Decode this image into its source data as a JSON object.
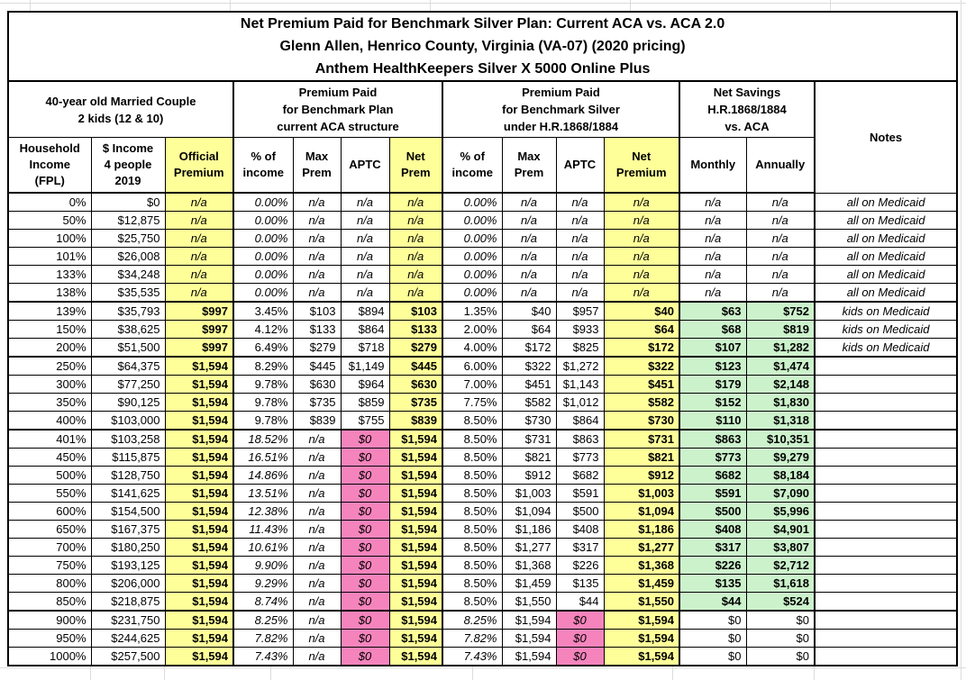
{
  "title": [
    "Net Premium Paid for Benchmark Silver Plan: Current ACA vs. ACA 2.0",
    "Glenn Allen, Henrico County, Virginia (VA-07) (2020 pricing)",
    "Anthem HealthKeepers Silver X 5000 Online Plus"
  ],
  "groups": {
    "household": "40-year old Married Couple\n2 kids (12 & 10)",
    "aca": "Premium Paid\nfor Benchmark Plan\ncurrent ACA structure",
    "hr": "Premium Paid\nfor Benchmark Silver\nunder H.R.1868/1884",
    "savings": "Net Savings\nH.R.1868/1884\nvs. ACA",
    "notes": "Notes"
  },
  "columns": [
    {
      "id": "fpl",
      "label": "Household\nIncome\n(FPL)"
    },
    {
      "id": "income",
      "label": "$ Income\n4 people\n2019"
    },
    {
      "id": "official-premium",
      "label": "Official\nPremium"
    },
    {
      "id": "aca-pct-income",
      "label": "% of\nincome"
    },
    {
      "id": "aca-max-prem",
      "label": "Max\nPrem"
    },
    {
      "id": "aca-aptc",
      "label": "APTC"
    },
    {
      "id": "aca-net-prem",
      "label": "Net\nPrem"
    },
    {
      "id": "hr-pct-income",
      "label": "% of\nincome"
    },
    {
      "id": "hr-max-prem",
      "label": "Max\nPrem"
    },
    {
      "id": "hr-aptc",
      "label": "APTC"
    },
    {
      "id": "hr-net-premium",
      "label": "Net\nPremium"
    },
    {
      "id": "savings-monthly",
      "label": "Monthly"
    },
    {
      "id": "savings-annually",
      "label": "Annually"
    },
    {
      "id": "notes",
      "label": "Notes"
    }
  ],
  "colors": {
    "yellow": "#FFFF99",
    "pink": "#F584BC",
    "green": "#CCF2CC",
    "border": "#000000",
    "grid": "#DCDCDC"
  },
  "rows": [
    {
      "group": "medicaid",
      "sep": false,
      "cells": [
        "0%",
        "$0",
        "n/a",
        "0.00%",
        "n/a",
        "n/a",
        "n/a",
        "0.00%",
        "n/a",
        "n/a",
        "n/a",
        "n/a",
        "n/a",
        "all on Medicaid"
      ]
    },
    {
      "group": "medicaid",
      "sep": false,
      "cells": [
        "50%",
        "$12,875",
        "n/a",
        "0.00%",
        "n/a",
        "n/a",
        "n/a",
        "0.00%",
        "n/a",
        "n/a",
        "n/a",
        "n/a",
        "n/a",
        "all on Medicaid"
      ]
    },
    {
      "group": "medicaid",
      "sep": false,
      "cells": [
        "100%",
        "$25,750",
        "n/a",
        "0.00%",
        "n/a",
        "n/a",
        "n/a",
        "0.00%",
        "n/a",
        "n/a",
        "n/a",
        "n/a",
        "n/a",
        "all on Medicaid"
      ]
    },
    {
      "group": "medicaid",
      "sep": false,
      "cells": [
        "101%",
        "$26,008",
        "n/a",
        "0.00%",
        "n/a",
        "n/a",
        "n/a",
        "0.00%",
        "n/a",
        "n/a",
        "n/a",
        "n/a",
        "n/a",
        "all on Medicaid"
      ]
    },
    {
      "group": "medicaid",
      "sep": false,
      "cells": [
        "133%",
        "$34,248",
        "n/a",
        "0.00%",
        "n/a",
        "n/a",
        "n/a",
        "0.00%",
        "n/a",
        "n/a",
        "n/a",
        "n/a",
        "n/a",
        "all on Medicaid"
      ]
    },
    {
      "group": "medicaid",
      "sep": false,
      "cells": [
        "138%",
        "$35,535",
        "n/a",
        "0.00%",
        "n/a",
        "n/a",
        "n/a",
        "0.00%",
        "n/a",
        "n/a",
        "n/a",
        "n/a",
        "n/a",
        "all on Medicaid"
      ]
    },
    {
      "group": "kids",
      "sep": true,
      "cells": [
        "139%",
        "$35,793",
        "$997",
        "3.45%",
        "$103",
        "$894",
        "$103",
        "1.35%",
        "$40",
        "$957",
        "$40",
        "$63",
        "$752",
        "kids on Medicaid"
      ]
    },
    {
      "group": "kids",
      "sep": false,
      "cells": [
        "150%",
        "$38,625",
        "$997",
        "4.12%",
        "$133",
        "$864",
        "$133",
        "2.00%",
        "$64",
        "$933",
        "$64",
        "$68",
        "$819",
        "kids on Medicaid"
      ]
    },
    {
      "group": "kids",
      "sep": false,
      "cells": [
        "200%",
        "$51,500",
        "$997",
        "6.49%",
        "$279",
        "$718",
        "$279",
        "4.00%",
        "$172",
        "$825",
        "$172",
        "$107",
        "$1,282",
        "kids on Medicaid"
      ]
    },
    {
      "group": "subsidy",
      "sep": true,
      "cells": [
        "250%",
        "$64,375",
        "$1,594",
        "8.29%",
        "$445",
        "$1,149",
        "$445",
        "6.00%",
        "$322",
        "$1,272",
        "$322",
        "$123",
        "$1,474",
        ""
      ]
    },
    {
      "group": "subsidy",
      "sep": false,
      "cells": [
        "300%",
        "$77,250",
        "$1,594",
        "9.78%",
        "$630",
        "$964",
        "$630",
        "7.00%",
        "$451",
        "$1,143",
        "$451",
        "$179",
        "$2,148",
        ""
      ]
    },
    {
      "group": "subsidy",
      "sep": false,
      "cells": [
        "350%",
        "$90,125",
        "$1,594",
        "9.78%",
        "$735",
        "$859",
        "$735",
        "7.75%",
        "$582",
        "$1,012",
        "$582",
        "$152",
        "$1,830",
        ""
      ]
    },
    {
      "group": "subsidy",
      "sep": false,
      "cells": [
        "400%",
        "$103,000",
        "$1,594",
        "9.78%",
        "$839",
        "$755",
        "$839",
        "8.50%",
        "$730",
        "$864",
        "$730",
        "$110",
        "$1,318",
        ""
      ]
    },
    {
      "group": "cliff",
      "sep": true,
      "cells": [
        "401%",
        "$103,258",
        "$1,594",
        "18.52%",
        "n/a",
        "$0",
        "$1,594",
        "8.50%",
        "$731",
        "$863",
        "$731",
        "$863",
        "$10,351",
        ""
      ]
    },
    {
      "group": "cliff",
      "sep": false,
      "cells": [
        "450%",
        "$115,875",
        "$1,594",
        "16.51%",
        "n/a",
        "$0",
        "$1,594",
        "8.50%",
        "$821",
        "$773",
        "$821",
        "$773",
        "$9,279",
        ""
      ]
    },
    {
      "group": "cliff",
      "sep": false,
      "cells": [
        "500%",
        "$128,750",
        "$1,594",
        "14.86%",
        "n/a",
        "$0",
        "$1,594",
        "8.50%",
        "$912",
        "$682",
        "$912",
        "$682",
        "$8,184",
        ""
      ]
    },
    {
      "group": "cliff",
      "sep": false,
      "cells": [
        "550%",
        "$141,625",
        "$1,594",
        "13.51%",
        "n/a",
        "$0",
        "$1,594",
        "8.50%",
        "$1,003",
        "$591",
        "$1,003",
        "$591",
        "$7,090",
        ""
      ]
    },
    {
      "group": "cliff",
      "sep": false,
      "cells": [
        "600%",
        "$154,500",
        "$1,594",
        "12.38%",
        "n/a",
        "$0",
        "$1,594",
        "8.50%",
        "$1,094",
        "$500",
        "$1,094",
        "$500",
        "$5,996",
        ""
      ]
    },
    {
      "group": "cliff",
      "sep": false,
      "cells": [
        "650%",
        "$167,375",
        "$1,594",
        "11.43%",
        "n/a",
        "$0",
        "$1,594",
        "8.50%",
        "$1,186",
        "$408",
        "$1,186",
        "$408",
        "$4,901",
        ""
      ]
    },
    {
      "group": "cliff",
      "sep": false,
      "cells": [
        "700%",
        "$180,250",
        "$1,594",
        "10.61%",
        "n/a",
        "$0",
        "$1,594",
        "8.50%",
        "$1,277",
        "$317",
        "$1,277",
        "$317",
        "$3,807",
        ""
      ]
    },
    {
      "group": "cliff",
      "sep": false,
      "cells": [
        "750%",
        "$193,125",
        "$1,594",
        "9.90%",
        "n/a",
        "$0",
        "$1,594",
        "8.50%",
        "$1,368",
        "$226",
        "$1,368",
        "$226",
        "$2,712",
        ""
      ]
    },
    {
      "group": "cliff",
      "sep": false,
      "cells": [
        "800%",
        "$206,000",
        "$1,594",
        "9.29%",
        "n/a",
        "$0",
        "$1,594",
        "8.50%",
        "$1,459",
        "$135",
        "$1,459",
        "$135",
        "$1,618",
        ""
      ]
    },
    {
      "group": "cliff",
      "sep": false,
      "cells": [
        "850%",
        "$218,875",
        "$1,594",
        "8.74%",
        "n/a",
        "$0",
        "$1,594",
        "8.50%",
        "$1,550",
        "$44",
        "$1,550",
        "$44",
        "$524",
        ""
      ]
    },
    {
      "group": "top",
      "sep": true,
      "cells": [
        "900%",
        "$231,750",
        "$1,594",
        "8.25%",
        "n/a",
        "$0",
        "$1,594",
        "8.25%",
        "$1,594",
        "$0",
        "$1,594",
        "$0",
        "$0",
        ""
      ]
    },
    {
      "group": "top",
      "sep": false,
      "cells": [
        "950%",
        "$244,625",
        "$1,594",
        "7.82%",
        "n/a",
        "$0",
        "$1,594",
        "7.82%",
        "$1,594",
        "$0",
        "$1,594",
        "$0",
        "$0",
        ""
      ]
    },
    {
      "group": "top",
      "sep": false,
      "cells": [
        "1000%",
        "$257,500",
        "$1,594",
        "7.43%",
        "n/a",
        "$0",
        "$1,594",
        "7.43%",
        "$1,594",
        "$0",
        "$1,594",
        "$0",
        "$0",
        ""
      ]
    }
  ]
}
